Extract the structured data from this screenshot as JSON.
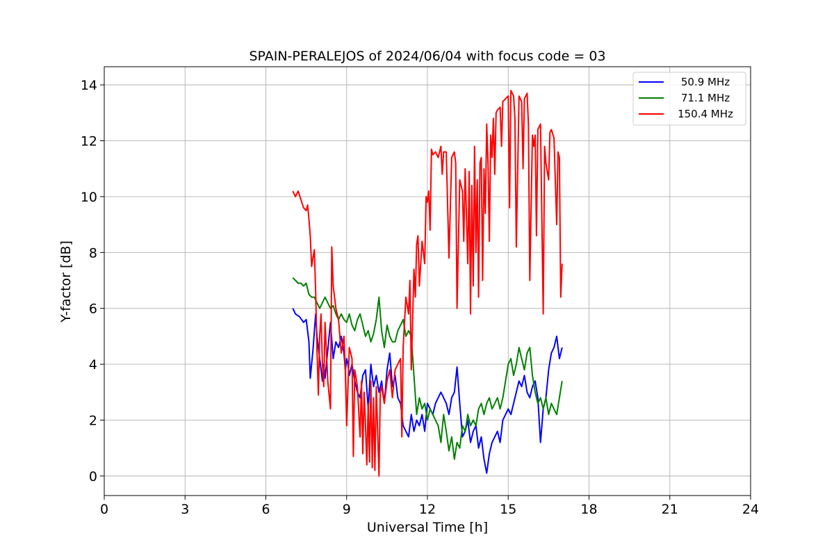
{
  "chart_data": {
    "type": "line",
    "title": "SPAIN-PERALEJOS of 2024/06/04 with focus code = 03",
    "xlabel": "Universal Time [h]",
    "ylabel": "Y-factor [dB]",
    "xlim": [
      0,
      24
    ],
    "ylim": [
      -0.7,
      14.65
    ],
    "xticks": [
      0,
      3,
      6,
      9,
      12,
      15,
      18,
      21,
      24
    ],
    "yticks": [
      0,
      2,
      4,
      6,
      8,
      10,
      12,
      14
    ],
    "grid": true,
    "legend_position": "top-right",
    "series": [
      {
        "name": "50.9 MHz",
        "color": "#0000ff",
        "x": [
          7.0,
          7.1,
          7.25,
          7.4,
          7.5,
          7.6,
          7.65,
          7.75,
          7.85,
          7.9,
          8.0,
          8.1,
          8.15,
          8.2,
          8.3,
          8.4,
          8.5,
          8.6,
          8.7,
          8.8,
          8.9,
          8.95,
          9.0,
          9.05,
          9.1,
          9.2,
          9.3,
          9.4,
          9.5,
          9.6,
          9.7,
          9.8,
          9.9,
          10.0,
          10.1,
          10.2,
          10.3,
          10.4,
          10.5,
          10.6,
          10.7,
          10.8,
          10.9,
          11.0,
          11.1,
          11.2,
          11.3,
          11.4,
          11.5,
          11.6,
          11.7,
          11.8,
          11.9,
          12.0,
          12.1,
          12.2,
          12.3,
          12.4,
          12.5,
          12.6,
          12.7,
          12.8,
          12.9,
          13.0,
          13.1,
          13.2,
          13.3,
          13.4,
          13.5,
          13.6,
          13.7,
          13.8,
          13.9,
          14.0,
          14.1,
          14.2,
          14.3,
          14.4,
          14.5,
          14.6,
          14.7,
          14.8,
          14.9,
          15.0,
          15.1,
          15.2,
          15.3,
          15.4,
          15.5,
          15.6,
          15.7,
          15.8,
          15.9,
          16.0,
          16.1,
          16.2,
          16.3,
          16.4,
          16.5,
          16.6,
          16.7,
          16.8,
          16.9,
          17.0
        ],
        "y": [
          6.0,
          5.8,
          5.7,
          5.5,
          5.6,
          4.8,
          3.5,
          4.5,
          5.8,
          5.0,
          4.2,
          3.4,
          4.0,
          3.5,
          4.5,
          5.5,
          4.2,
          4.8,
          4.6,
          5.0,
          4.4,
          3.8,
          4.2,
          4.0,
          3.6,
          4.0,
          3.4,
          3.0,
          2.8,
          3.6,
          3.8,
          2.4,
          4.0,
          3.2,
          3.6,
          3.0,
          3.4,
          2.6,
          3.8,
          4.4,
          3.2,
          3.6,
          2.8,
          2.6,
          1.8,
          1.6,
          1.4,
          2.2,
          1.6,
          2.0,
          1.8,
          2.2,
          1.6,
          2.6,
          2.4,
          2.2,
          2.6,
          2.8,
          3.0,
          2.8,
          2.6,
          2.2,
          2.8,
          3.0,
          3.9,
          2.6,
          1.4,
          1.6,
          2.0,
          1.2,
          1.6,
          1.8,
          1.0,
          1.4,
          0.6,
          0.1,
          0.8,
          1.2,
          1.4,
          1.6,
          1.2,
          2.0,
          2.2,
          2.4,
          2.2,
          2.6,
          3.0,
          3.4,
          3.2,
          3.6,
          3.0,
          2.8,
          3.2,
          3.4,
          2.8,
          1.2,
          2.4,
          2.8,
          3.8,
          4.4,
          4.6,
          5.0,
          4.2,
          4.6
        ]
      },
      {
        "name": "71.1 MHz",
        "color": "#008000",
        "x": [
          7.0,
          7.1,
          7.2,
          7.3,
          7.4,
          7.5,
          7.6,
          7.7,
          7.8,
          7.9,
          8.0,
          8.1,
          8.2,
          8.3,
          8.4,
          8.5,
          8.6,
          8.7,
          8.8,
          8.9,
          9.0,
          9.1,
          9.2,
          9.3,
          9.4,
          9.5,
          9.6,
          9.7,
          9.8,
          9.9,
          10.0,
          10.1,
          10.2,
          10.3,
          10.4,
          10.5,
          10.6,
          10.7,
          10.8,
          10.9,
          11.0,
          11.1,
          11.2,
          11.3,
          11.4,
          11.5,
          11.6,
          11.7,
          11.8,
          11.9,
          12.0,
          12.1,
          12.2,
          12.3,
          12.4,
          12.5,
          12.6,
          12.7,
          12.8,
          12.9,
          13.0,
          13.1,
          13.2,
          13.3,
          13.4,
          13.5,
          13.6,
          13.7,
          13.8,
          13.9,
          14.0,
          14.1,
          14.2,
          14.3,
          14.4,
          14.5,
          14.6,
          14.7,
          14.8,
          14.9,
          15.0,
          15.1,
          15.2,
          15.3,
          15.4,
          15.5,
          15.6,
          15.7,
          15.8,
          15.9,
          16.0,
          16.1,
          16.2,
          16.3,
          16.4,
          16.5,
          16.6,
          16.7,
          16.8,
          16.9,
          17.0
        ],
        "y": [
          7.1,
          7.0,
          6.9,
          6.9,
          6.8,
          6.9,
          6.5,
          6.4,
          6.4,
          6.2,
          6.0,
          6.2,
          6.4,
          6.2,
          6.0,
          6.1,
          5.8,
          5.6,
          5.8,
          5.6,
          5.5,
          5.8,
          5.4,
          5.2,
          5.6,
          5.8,
          5.4,
          5.0,
          5.2,
          4.8,
          5.1,
          5.6,
          6.4,
          5.2,
          4.6,
          5.4,
          5.0,
          4.8,
          4.8,
          5.2,
          5.4,
          5.6,
          5.0,
          5.2,
          5.0,
          3.6,
          2.2,
          2.8,
          2.4,
          2.6,
          2.0,
          2.4,
          2.2,
          2.0,
          1.8,
          1.2,
          2.2,
          1.6,
          0.9,
          1.4,
          0.6,
          1.2,
          1.0,
          1.8,
          1.6,
          2.2,
          1.8,
          2.0,
          1.8,
          2.4,
          2.6,
          2.2,
          2.6,
          2.8,
          2.4,
          2.6,
          2.8,
          2.4,
          2.8,
          3.4,
          4.0,
          4.2,
          3.6,
          4.0,
          4.6,
          4.2,
          3.8,
          4.4,
          4.6,
          3.6,
          3.0,
          2.6,
          2.8,
          2.4,
          2.8,
          2.2,
          2.6,
          2.4,
          2.2,
          2.8,
          3.4
        ]
      },
      {
        "name": "150.4 MHz",
        "color": "#ff0000",
        "x": [
          7.0,
          7.1,
          7.2,
          7.3,
          7.4,
          7.5,
          7.55,
          7.6,
          7.65,
          7.7,
          7.75,
          7.8,
          7.85,
          7.9,
          7.95,
          8.0,
          8.05,
          8.1,
          8.15,
          8.2,
          8.3,
          8.4,
          8.45,
          8.5,
          8.6,
          8.7,
          8.8,
          8.9,
          8.95,
          9.0,
          9.05,
          9.1,
          9.2,
          9.25,
          9.3,
          9.4,
          9.5,
          9.55,
          9.6,
          9.65,
          9.7,
          9.75,
          9.8,
          9.85,
          9.9,
          9.95,
          10.0,
          10.05,
          10.1,
          10.2,
          10.25,
          10.3,
          10.4,
          10.5,
          10.6,
          10.7,
          10.8,
          10.9,
          11.0,
          11.05,
          11.1,
          11.2,
          11.3,
          11.35,
          11.4,
          11.5,
          11.55,
          11.6,
          11.65,
          11.7,
          11.8,
          11.9,
          11.95,
          12.0,
          12.05,
          12.1,
          12.15,
          12.2,
          12.3,
          12.4,
          12.5,
          12.55,
          12.6,
          12.7,
          12.8,
          12.9,
          13.0,
          13.05,
          13.1,
          13.2,
          13.3,
          13.35,
          13.4,
          13.5,
          13.55,
          13.6,
          13.65,
          13.7,
          13.75,
          13.8,
          13.85,
          13.9,
          13.95,
          14.0,
          14.05,
          14.1,
          14.15,
          14.2,
          14.25,
          14.3,
          14.35,
          14.4,
          14.45,
          14.5,
          14.55,
          14.6,
          14.7,
          14.75,
          14.8,
          14.9,
          15.0,
          15.05,
          15.1,
          15.2,
          15.25,
          15.3,
          15.4,
          15.5,
          15.55,
          15.6,
          15.7,
          15.75,
          15.8,
          15.9,
          15.95,
          16.0,
          16.05,
          16.1,
          16.2,
          16.3,
          16.35,
          16.4,
          16.5,
          16.55,
          16.6,
          16.7,
          16.8,
          16.85,
          16.9,
          16.95,
          17.0
        ],
        "y": [
          10.2,
          10.0,
          10.2,
          9.9,
          9.6,
          9.5,
          9.7,
          9.2,
          8.6,
          7.5,
          7.8,
          8.1,
          6.6,
          4.5,
          2.9,
          5.0,
          5.8,
          4.0,
          3.2,
          5.5,
          3.4,
          2.4,
          8.2,
          6.8,
          6.0,
          5.6,
          4.4,
          5.0,
          3.8,
          1.8,
          3.2,
          4.6,
          4.2,
          0.7,
          3.8,
          3.2,
          1.4,
          3.4,
          0.8,
          3.0,
          1.8,
          0.4,
          2.6,
          0.5,
          3.4,
          0.3,
          2.8,
          0.2,
          3.2,
          0.0,
          3.0,
          3.2,
          2.6,
          3.4,
          3.8,
          2.8,
          3.8,
          4.0,
          4.2,
          1.4,
          4.6,
          6.4,
          5.8,
          7.0,
          3.8,
          7.4,
          6.4,
          8.3,
          8.6,
          6.8,
          8.4,
          7.6,
          10.0,
          9.8,
          10.2,
          8.8,
          11.7,
          11.5,
          11.6,
          11.4,
          11.8,
          10.8,
          11.6,
          11.6,
          7.8,
          11.4,
          11.6,
          11.2,
          6.0,
          10.6,
          10.2,
          8.4,
          11.0,
          7.6,
          10.9,
          5.8,
          10.4,
          6.8,
          11.8,
          8.0,
          10.6,
          6.4,
          11.2,
          11.4,
          7.0,
          11.0,
          9.4,
          12.6,
          11.2,
          8.4,
          12.2,
          11.4,
          12.8,
          10.8,
          13.0,
          13.1,
          13.2,
          11.8,
          13.4,
          13.5,
          13.6,
          9.6,
          13.8,
          13.6,
          12.8,
          8.2,
          13.6,
          13.4,
          11.0,
          13.5,
          13.7,
          12.6,
          7.0,
          12.2,
          11.8,
          12.2,
          8.6,
          12.4,
          12.6,
          5.8,
          11.8,
          11.2,
          10.6,
          12.3,
          12.4,
          12.1,
          9.0,
          11.6,
          11.4,
          6.4,
          7.6
        ]
      }
    ]
  }
}
